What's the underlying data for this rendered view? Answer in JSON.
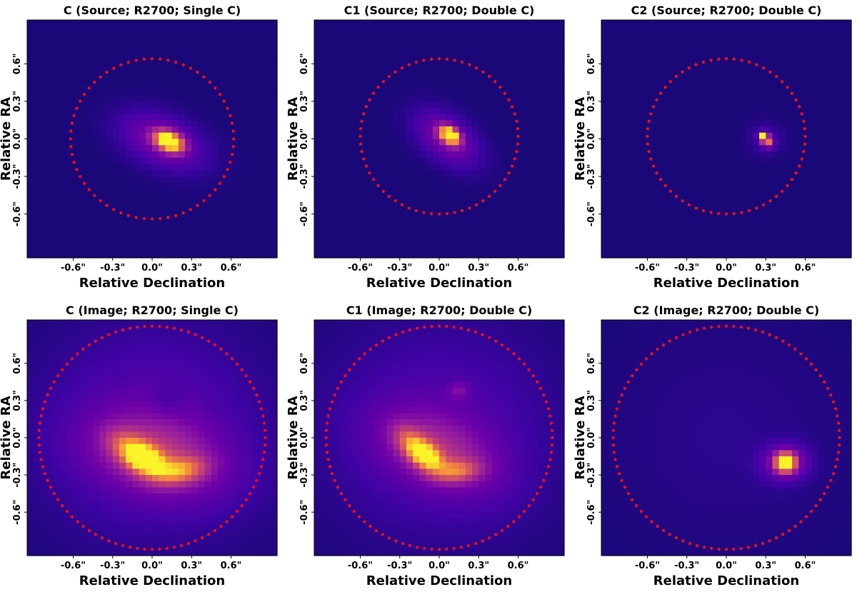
{
  "chart_data": [
    {
      "type": "heatmap",
      "title": "C (Source; R2700; Single C)",
      "xlabel": "Relative Declination",
      "ylabel": "Relative RA",
      "xlim": [
        -0.95,
        0.95
      ],
      "ylim": [
        -0.95,
        0.95
      ],
      "xticks": [
        "-0.6\"",
        "-0.3\"",
        "0.0\"",
        "0.3\"",
        "0.6\""
      ],
      "yticks": [
        "0.6\"",
        "0.3\"",
        "0.0\"",
        "-0.3\"",
        "-0.6\""
      ],
      "pixel_size": 0.05,
      "colormap": "plasma",
      "blobs": [
        {
          "x": 0.13,
          "y": -0.02,
          "sx": 0.08,
          "sy": 0.05,
          "theta": -25,
          "amp": 1.0
        },
        {
          "x": 0.08,
          "y": -0.02,
          "sx": 0.24,
          "sy": 0.14,
          "theta": -25,
          "amp": 0.35
        }
      ],
      "overlay": {
        "style": "red-dotted",
        "cx": 0.0,
        "cy": 0.0,
        "rx": 0.62,
        "ry": 0.64,
        "n": 64
      }
    },
    {
      "type": "heatmap",
      "title": "C1 (Source; R2700; Double C)",
      "xlabel": "Relative Declination",
      "ylabel": "Relative RA",
      "xlim": [
        -0.95,
        0.95
      ],
      "ylim": [
        -0.95,
        0.95
      ],
      "xticks": [
        "-0.6\"",
        "-0.3\"",
        "0.0\"",
        "0.3\"",
        "0.6\""
      ],
      "yticks": [
        "0.6\"",
        "0.3\"",
        "0.0\"",
        "-0.3\"",
        "-0.6\""
      ],
      "pixel_size": 0.05,
      "colormap": "plasma",
      "blobs": [
        {
          "x": 0.08,
          "y": 0.03,
          "sx": 0.06,
          "sy": 0.04,
          "theta": -40,
          "amp": 1.0
        },
        {
          "x": 0.06,
          "y": 0.0,
          "sx": 0.2,
          "sy": 0.12,
          "theta": -40,
          "amp": 0.35
        }
      ],
      "overlay": {
        "style": "red-dotted",
        "cx": 0.0,
        "cy": 0.02,
        "rx": 0.6,
        "ry": 0.62,
        "n": 64
      }
    },
    {
      "type": "heatmap",
      "title": "C2 (Source; R2700; Double C)",
      "xlabel": "Relative Declination",
      "ylabel": "Relative RA",
      "xlim": [
        -0.95,
        0.95
      ],
      "ylim": [
        -0.95,
        0.95
      ],
      "xticks": [
        "-0.6\"",
        "-0.3\"",
        "0.0\"",
        "0.3\"",
        "0.6\""
      ],
      "yticks": [
        "0.6\"",
        "0.3\"",
        "0.0\"",
        "-0.3\"",
        "-0.6\""
      ],
      "pixel_size": 0.05,
      "colormap": "plasma",
      "blobs": [
        {
          "x": 0.28,
          "y": 0.02,
          "sx": 0.025,
          "sy": 0.025,
          "theta": 0,
          "amp": 1.0
        },
        {
          "x": 0.32,
          "y": -0.03,
          "sx": 0.03,
          "sy": 0.03,
          "theta": 0,
          "amp": 0.6
        },
        {
          "x": 0.3,
          "y": 0.0,
          "sx": 0.1,
          "sy": 0.1,
          "theta": 0,
          "amp": 0.12
        }
      ],
      "overlay": {
        "style": "red-dotted",
        "cx": 0.0,
        "cy": 0.02,
        "rx": 0.6,
        "ry": 0.62,
        "n": 64
      }
    },
    {
      "type": "heatmap",
      "title": "C (Image; R2700; Single C)",
      "xlabel": "Relative Declination",
      "ylabel": "Relative RA",
      "xlim": [
        -0.95,
        0.95
      ],
      "ylim": [
        -0.95,
        0.95
      ],
      "xticks": [
        "-0.6\"",
        "-0.3\"",
        "0.0\"",
        "0.3\"",
        "0.6\""
      ],
      "yticks": [
        "0.6\"",
        "0.3\"",
        "0.0\"",
        "-0.3\"",
        "-0.6\""
      ],
      "pixel_size": 0.05,
      "colormap": "plasma",
      "blobs": [
        {
          "x": -0.05,
          "y": -0.18,
          "sx": 0.1,
          "sy": 0.07,
          "theta": -25,
          "amp": 0.6
        },
        {
          "x": 0.2,
          "y": -0.27,
          "sx": 0.14,
          "sy": 0.07,
          "theta": 10,
          "amp": 0.45
        },
        {
          "x": -0.15,
          "y": -0.1,
          "sx": 0.14,
          "sy": 0.08,
          "theta": -35,
          "amp": 0.4
        },
        {
          "x": 0.05,
          "y": -0.15,
          "sx": 0.38,
          "sy": 0.22,
          "theta": -15,
          "amp": 0.35
        },
        {
          "x": 0.0,
          "y": 0.05,
          "sx": 0.6,
          "sy": 0.6,
          "theta": 0,
          "amp": 0.22
        },
        {
          "x": 0.12,
          "y": 0.3,
          "sx": 0.08,
          "sy": 0.08,
          "theta": 0,
          "amp": -0.08
        }
      ],
      "overlay": {
        "style": "red-dotted",
        "cx": 0.0,
        "cy": 0.0,
        "rx": 0.86,
        "ry": 0.9,
        "n": 96
      }
    },
    {
      "type": "heatmap",
      "title": "C1 (Image; R2700; Double C)",
      "xlabel": "Relative Declination",
      "ylabel": "Relative RA",
      "xlim": [
        -0.95,
        0.95
      ],
      "ylim": [
        -0.95,
        0.95
      ],
      "xticks": [
        "-0.6\"",
        "-0.3\"",
        "0.0\"",
        "0.3\"",
        "0.6\""
      ],
      "yticks": [
        "0.6\"",
        "0.3\"",
        "0.0\"",
        "-0.3\"",
        "-0.6\""
      ],
      "pixel_size": 0.05,
      "colormap": "plasma",
      "blobs": [
        {
          "x": -0.1,
          "y": -0.15,
          "sx": 0.09,
          "sy": 0.06,
          "theta": -35,
          "amp": 0.62
        },
        {
          "x": 0.12,
          "y": -0.27,
          "sx": 0.13,
          "sy": 0.06,
          "theta": 5,
          "amp": 0.4
        },
        {
          "x": -0.2,
          "y": -0.05,
          "sx": 0.12,
          "sy": 0.07,
          "theta": -45,
          "amp": 0.38
        },
        {
          "x": 0.0,
          "y": -0.12,
          "sx": 0.34,
          "sy": 0.2,
          "theta": -25,
          "amp": 0.32
        },
        {
          "x": 0.0,
          "y": 0.05,
          "sx": 0.6,
          "sy": 0.6,
          "theta": 0,
          "amp": 0.2
        },
        {
          "x": 0.15,
          "y": 0.38,
          "sx": 0.05,
          "sy": 0.05,
          "theta": 0,
          "amp": 0.18
        }
      ],
      "overlay": {
        "style": "red-dotted",
        "cx": 0.0,
        "cy": 0.0,
        "rx": 0.86,
        "ry": 0.9,
        "n": 96
      }
    },
    {
      "type": "heatmap",
      "title": "C2 (Image; R2700; Double C)",
      "xlabel": "Relative Declination",
      "ylabel": "Relative RA",
      "xlim": [
        -0.95,
        0.95
      ],
      "ylim": [
        -0.95,
        0.95
      ],
      "xticks": [
        "-0.6\"",
        "-0.3\"",
        "0.0\"",
        "0.3\"",
        "0.6\""
      ],
      "yticks": [
        "0.6\"",
        "0.3\"",
        "0.0\"",
        "-0.3\"",
        "-0.6\""
      ],
      "pixel_size": 0.05,
      "colormap": "plasma",
      "blobs": [
        {
          "x": 0.45,
          "y": -0.2,
          "sx": 0.05,
          "sy": 0.05,
          "theta": 0,
          "amp": 1.0
        },
        {
          "x": 0.45,
          "y": -0.2,
          "sx": 0.12,
          "sy": 0.1,
          "theta": 0,
          "amp": 0.4
        },
        {
          "x": 0.0,
          "y": 0.0,
          "sx": 0.6,
          "sy": 0.6,
          "theta": 0,
          "amp": 0.06
        }
      ],
      "overlay": {
        "style": "red-dotted",
        "cx": 0.0,
        "cy": 0.0,
        "rx": 0.86,
        "ry": 0.9,
        "n": 96
      }
    }
  ]
}
